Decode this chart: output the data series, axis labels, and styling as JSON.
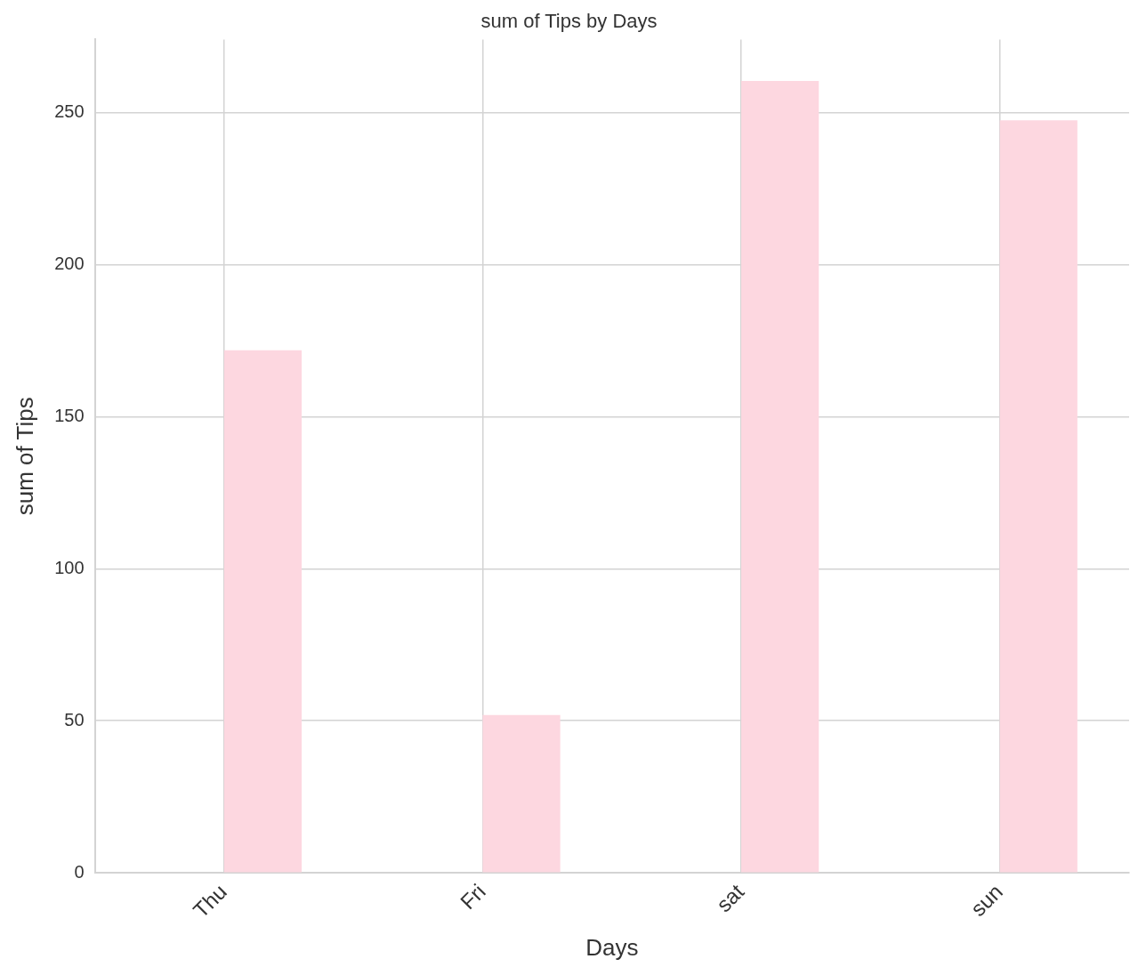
{
  "chart_data": {
    "type": "bar",
    "title": "sum of Tips by Days",
    "xlabel": "Days",
    "ylabel": "sum of Tips",
    "categories": [
      "Thu",
      "Fri",
      "sat",
      "sun"
    ],
    "values": [
      171.8,
      51.9,
      260.4,
      247.4
    ],
    "color": "#fdd7e0",
    "ylim": [
      0,
      274
    ],
    "yticks": [
      0,
      50,
      100,
      150,
      200,
      250
    ],
    "grid": true
  }
}
